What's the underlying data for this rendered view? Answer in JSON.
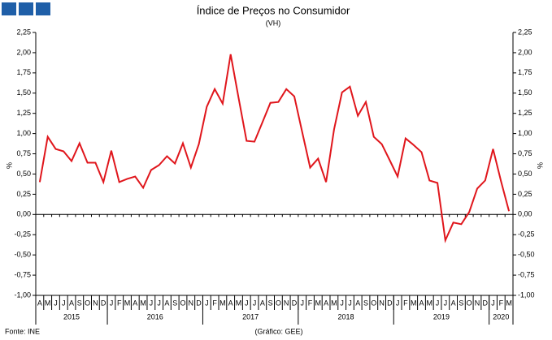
{
  "chart_data": {
    "type": "line",
    "title": "Índice de Preços no Consumidor",
    "subtitle": "(VH)",
    "y_label": "%",
    "source": "Fonte: INE",
    "credit": "(Gráfico: GEE)",
    "groups": [
      {
        "label": "2015",
        "categories": [
          "A",
          "M",
          "J",
          "J",
          "A",
          "S",
          "O",
          "N",
          "D"
        ]
      },
      {
        "label": "2016",
        "categories": [
          "J",
          "F",
          "M",
          "A",
          "M",
          "J",
          "J",
          "A",
          "S",
          "O",
          "N",
          "D"
        ]
      },
      {
        "label": "2017",
        "categories": [
          "J",
          "F",
          "M",
          "A",
          "M",
          "J",
          "J",
          "A",
          "S",
          "O",
          "N",
          "D"
        ]
      },
      {
        "label": "2018",
        "categories": [
          "J",
          "F",
          "M",
          "A",
          "M",
          "J",
          "J",
          "A",
          "S",
          "O",
          "N",
          "D"
        ]
      },
      {
        "label": "2019",
        "categories": [
          "J",
          "F",
          "M",
          "A",
          "M",
          "J",
          "J",
          "A",
          "S",
          "O",
          "N",
          "D"
        ]
      },
      {
        "label": "2020",
        "categories": [
          "J",
          "F",
          "M"
        ]
      }
    ],
    "values": [
      0.4,
      0.96,
      0.81,
      0.78,
      0.66,
      0.88,
      0.64,
      0.64,
      0.4,
      0.79,
      0.4,
      0.44,
      0.47,
      0.33,
      0.55,
      0.61,
      0.72,
      0.63,
      0.88,
      0.58,
      0.87,
      1.33,
      1.55,
      1.37,
      1.98,
      1.44,
      0.91,
      0.9,
      1.14,
      1.38,
      1.39,
      1.55,
      1.46,
      1.02,
      0.58,
      0.69,
      0.4,
      1.05,
      1.51,
      1.58,
      1.22,
      1.39,
      0.96,
      0.87,
      0.67,
      0.47,
      0.94,
      0.86,
      0.77,
      0.42,
      0.39,
      -0.32,
      -0.1,
      -0.12,
      0.03,
      0.32,
      0.42,
      0.81,
      0.41,
      0.04
    ],
    "color": "#e0161c",
    "ylim": [
      -1.0,
      2.25
    ],
    "yticks": [
      {
        "value": -1.0,
        "label": "-1,00"
      },
      {
        "value": -0.75,
        "label": "-0,75"
      },
      {
        "value": -0.5,
        "label": "-0,50"
      },
      {
        "value": -0.25,
        "label": "-0,25"
      },
      {
        "value": 0,
        "label": "0,00"
      },
      {
        "value": 0.25,
        "label": "0,25"
      },
      {
        "value": 0.5,
        "label": "0,50"
      },
      {
        "value": 0.75,
        "label": "0,75"
      },
      {
        "value": 1.0,
        "label": "1,00"
      },
      {
        "value": 1.25,
        "label": "1,25"
      },
      {
        "value": 1.5,
        "label": "1,50"
      },
      {
        "value": 1.75,
        "label": "1,75"
      },
      {
        "value": 2.0,
        "label": "2,00"
      },
      {
        "value": 2.25,
        "label": "2,25"
      }
    ],
    "grid": false
  }
}
